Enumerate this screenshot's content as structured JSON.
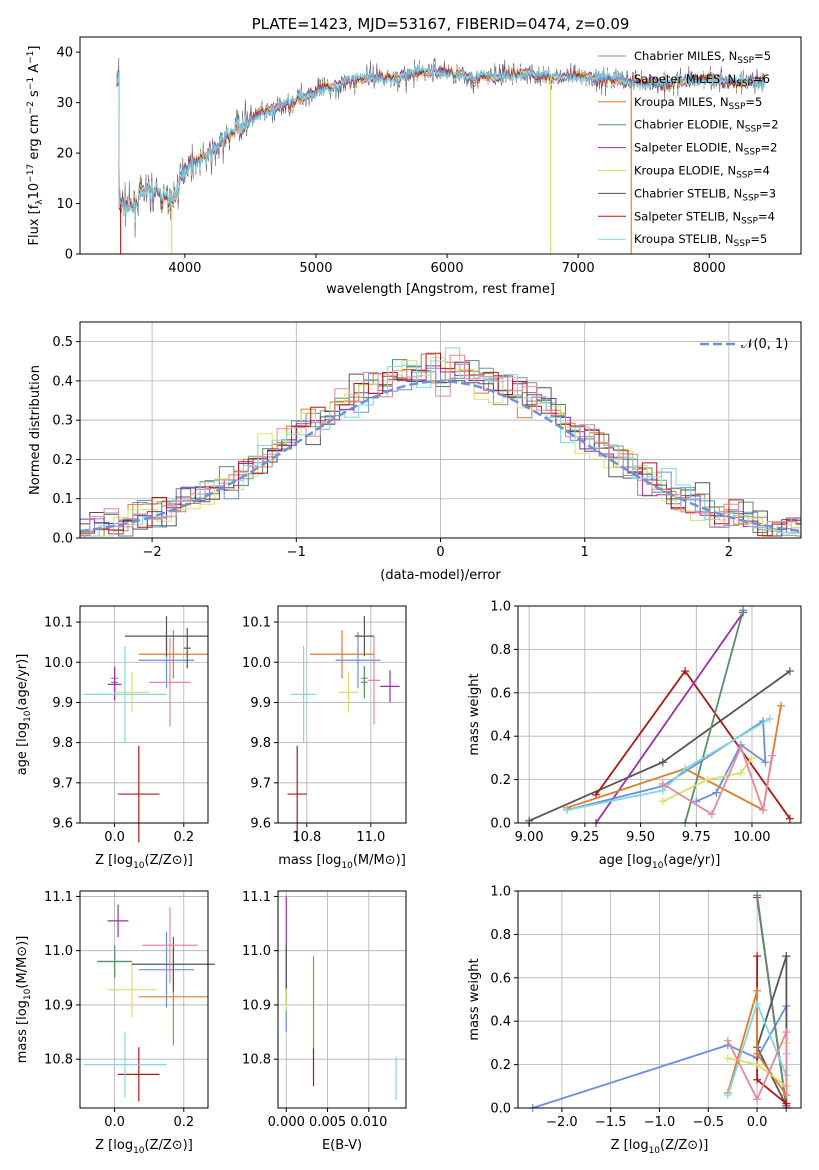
{
  "colors": {
    "chabrier_miles": "#7f9a8a",
    "salpeter_miles": "#6b8fe0",
    "kroupa_miles": "#e07b2a",
    "chabrier_elodie": "#5a8f66",
    "salpeter_elodie": "#9a2fb0",
    "kroupa_elodie": "#d8e06a",
    "chabrier_stelib": "#555555",
    "salpeter_stelib": "#b01818",
    "kroupa_stelib": "#7fd8e0",
    "normal": "#6a93d8",
    "pink": "#e8879b"
  },
  "chart_data": [
    {
      "id": "spectrum",
      "type": "line",
      "title": "PLATE=1423, MJD=53167, FIBERID=0474, z=0.09",
      "xlabel": "wavelength [Angstrom, rest frame]",
      "ylabel": "Flux [f",
      "xlim": [
        3200,
        8700
      ],
      "ylim": [
        0,
        43
      ],
      "xticks": [
        "4000",
        "5000",
        "6000",
        "7000",
        "8000"
      ],
      "yticks": [
        "0",
        "10",
        "20",
        "30",
        "40"
      ],
      "legend": [
        "Chabrier MILES, N",
        "Salpeter MILES, N",
        "Kroupa MILES, N",
        "Chabrier ELODIE, N",
        "Salpeter ELODIE, N",
        "Kroupa ELODIE, N",
        "Chabrier STELIB, N",
        "Salpeter STELIB, N",
        "Kroupa STELIB, N"
      ],
      "legend_nssp": [
        "=5",
        "=6",
        "=5",
        "=2",
        "=2",
        "=4",
        "=3",
        "=4",
        "=5"
      ],
      "legend_position": "upper right",
      "continuum": [
        [
          3500,
          10
        ],
        [
          3600,
          9
        ],
        [
          3700,
          13
        ],
        [
          3800,
          12
        ],
        [
          3900,
          10
        ],
        [
          3950,
          13
        ],
        [
          4000,
          17
        ],
        [
          4200,
          20
        ],
        [
          4400,
          25
        ],
        [
          4600,
          28
        ],
        [
          4800,
          30
        ],
        [
          5000,
          32
        ],
        [
          5200,
          34
        ],
        [
          5400,
          35
        ],
        [
          5600,
          35
        ],
        [
          5800,
          36
        ],
        [
          6000,
          36
        ],
        [
          6200,
          35
        ],
        [
          6400,
          35
        ],
        [
          6600,
          36
        ],
        [
          6800,
          35
        ],
        [
          7000,
          35
        ],
        [
          7200,
          35
        ],
        [
          7400,
          34
        ],
        [
          7600,
          34
        ],
        [
          7800,
          34
        ],
        [
          8000,
          35
        ],
        [
          8200,
          34
        ],
        [
          8400,
          34
        ]
      ],
      "spikes": [
        [
          3510,
          0
        ],
        [
          3900,
          0
        ],
        [
          6790,
          0
        ],
        [
          7405,
          0
        ]
      ]
    },
    {
      "id": "residuals",
      "type": "histogram",
      "xlabel": "(data-model)/error",
      "ylabel": "Normed distribution",
      "xlim": [
        -2.5,
        2.5
      ],
      "ylim": [
        0,
        0.55
      ],
      "xticks": [
        "−2",
        "−1",
        "0",
        "1",
        "2"
      ],
      "yticks": [
        "0.0",
        "0.1",
        "0.2",
        "0.3",
        "0.4",
        "0.5"
      ],
      "legend": [
        "(0, 1)"
      ],
      "legend_position": "upper right",
      "bin_width": 0.1
    },
    {
      "id": "age_vs_Z",
      "type": "errorbar",
      "xlabel": "Z [log",
      "ylabel": "age  [log",
      "xlim": [
        -0.1,
        0.27
      ],
      "ylim": [
        9.6,
        10.14
      ],
      "xticks": [
        "0.0",
        "0.2"
      ],
      "yticks": [
        "9.6",
        "9.7",
        "9.8",
        "9.9",
        "10.0",
        "10.1"
      ],
      "points": [
        {
          "x": 0.0,
          "y": 9.96,
          "xerr": 0.01,
          "yerr": 0.03,
          "c": "chabrier_miles"
        },
        {
          "x": 0.15,
          "y": 10.005,
          "xerr": 0.08,
          "yerr": 0.07,
          "c": "salpeter_miles"
        },
        {
          "x": 0.17,
          "y": 10.02,
          "xerr": 0.1,
          "yerr": 0.06,
          "c": "kroupa_miles"
        },
        {
          "x": 0.0,
          "y": 9.95,
          "xerr": 0.01,
          "yerr": 0.04,
          "c": "chabrier_elodie"
        },
        {
          "x": 0.0,
          "y": 9.945,
          "xerr": 0.02,
          "yerr": 0.04,
          "c": "salpeter_elodie"
        },
        {
          "x": 0.05,
          "y": 9.925,
          "xerr": 0.05,
          "yerr": 0.05,
          "c": "kroupa_elodie"
        },
        {
          "x": 0.15,
          "y": 10.065,
          "xerr": 0.12,
          "yerr": 0.05,
          "c": "chabrier_stelib"
        },
        {
          "x": 0.07,
          "y": 9.672,
          "xerr": 0.06,
          "yerr": 0.12,
          "c": "salpeter_stelib"
        },
        {
          "x": 0.03,
          "y": 9.92,
          "xerr": 0.12,
          "yerr": 0.12,
          "c": "kroupa_stelib"
        },
        {
          "x": 0.16,
          "y": 9.95,
          "xerr": 0.06,
          "yerr": 0.11,
          "c": "pink"
        },
        {
          "x": 0.21,
          "y": 10.035,
          "xerr": 0.01,
          "yerr": 0.05,
          "c": "chabrier_stelib"
        }
      ]
    },
    {
      "id": "age_vs_mass",
      "type": "errorbar",
      "xlabel": "mass [log",
      "ylabel": "",
      "xlim": [
        10.71,
        11.11
      ],
      "ylim": [
        9.6,
        10.14
      ],
      "xticks": [
        "10.8",
        "11.0"
      ],
      "yticks": [
        "9.6",
        "9.7",
        "9.8",
        "9.9",
        "10.0",
        "10.1"
      ],
      "points": [
        {
          "x": 10.98,
          "y": 9.96,
          "xerr": 0.01,
          "yerr": 0.03,
          "c": "chabrier_miles"
        },
        {
          "x": 10.96,
          "y": 10.005,
          "xerr": 0.07,
          "yerr": 0.07,
          "c": "salpeter_miles"
        },
        {
          "x": 10.91,
          "y": 10.02,
          "xerr": 0.1,
          "yerr": 0.06,
          "c": "kroupa_miles"
        },
        {
          "x": 10.98,
          "y": 9.95,
          "xerr": 0.01,
          "yerr": 0.04,
          "c": "chabrier_elodie"
        },
        {
          "x": 11.06,
          "y": 9.94,
          "xerr": 0.03,
          "yerr": 0.04,
          "c": "salpeter_elodie"
        },
        {
          "x": 10.93,
          "y": 9.925,
          "xerr": 0.03,
          "yerr": 0.05,
          "c": "kroupa_elodie"
        },
        {
          "x": 10.98,
          "y": 10.065,
          "xerr": 0.03,
          "yerr": 0.05,
          "c": "chabrier_stelib"
        },
        {
          "x": 10.77,
          "y": 9.672,
          "xerr": 0.03,
          "yerr": 0.12,
          "c": "salpeter_stelib"
        },
        {
          "x": 10.79,
          "y": 9.92,
          "xerr": 0.04,
          "yerr": 0.12,
          "c": "kroupa_stelib"
        },
        {
          "x": 11.01,
          "y": 9.955,
          "xerr": 0.02,
          "yerr": 0.11,
          "c": "pink"
        }
      ]
    },
    {
      "id": "weight_vs_age",
      "type": "line",
      "xlabel": "age  [log",
      "ylabel": "mass weight",
      "xlim": [
        8.95,
        10.22
      ],
      "ylim": [
        0,
        1
      ],
      "xticks": [
        "9.00",
        "9.25",
        "9.50",
        "9.75",
        "10.00"
      ],
      "yticks": [
        "0.0",
        "0.2",
        "0.4",
        "0.6",
        "0.8",
        "1.0"
      ],
      "series": [
        {
          "c": "chabrier_stelib",
          "pts": [
            [
              9.0,
              0.01
            ],
            [
              9.6,
              0.28
            ],
            [
              10.17,
              0.7
            ]
          ]
        },
        {
          "c": "salpeter_stelib",
          "pts": [
            [
              9.3,
              0.13
            ],
            [
              9.7,
              0.7
            ],
            [
              10.17,
              0.02
            ]
          ]
        },
        {
          "c": "salpeter_elodie",
          "pts": [
            [
              9.3,
              0.0
            ],
            [
              9.96,
              0.97
            ]
          ]
        },
        {
          "c": "chabrier_elodie",
          "pts": [
            [
              9.7,
              0.0
            ],
            [
              9.96,
              0.98
            ]
          ]
        },
        {
          "c": "kroupa_miles",
          "pts": [
            [
              9.17,
              0.07
            ],
            [
              9.7,
              0.25
            ],
            [
              10.05,
              0.06
            ],
            [
              10.13,
              0.54
            ]
          ]
        },
        {
          "c": "salpeter_miles",
          "pts": [
            [
              9.17,
              0.06
            ],
            [
              9.6,
              0.17
            ],
            [
              10.05,
              0.47
            ],
            [
              10.06,
              0.28
            ],
            [
              9.95,
              0.36
            ],
            [
              9.84,
              0.14
            ],
            [
              9.75,
              0.1
            ]
          ]
        },
        {
          "c": "kroupa_stelib",
          "pts": [
            [
              9.17,
              0.06
            ],
            [
              9.6,
              0.15
            ],
            [
              9.7,
              0.25
            ],
            [
              10.08,
              0.48
            ]
          ]
        },
        {
          "c": "kroupa_elodie",
          "pts": [
            [
              9.6,
              0.1
            ],
            [
              9.8,
              0.2
            ],
            [
              9.95,
              0.23
            ],
            [
              10.0,
              0.3
            ]
          ]
        },
        {
          "c": "pink",
          "pts": [
            [
              9.6,
              0.18
            ],
            [
              9.82,
              0.04
            ],
            [
              9.95,
              0.35
            ],
            [
              10.05,
              0.06
            ],
            [
              10.09,
              0.31
            ]
          ]
        }
      ]
    },
    {
      "id": "mass_vs_Z",
      "type": "errorbar",
      "xlabel": "Z [log",
      "ylabel": "mass [log",
      "xlim": [
        -0.1,
        0.27
      ],
      "ylim": [
        10.71,
        11.11
      ],
      "xticks": [
        "0.0",
        "0.2"
      ],
      "yticks": [
        "10.8",
        "10.9",
        "11.0",
        "11.1"
      ],
      "points": [
        {
          "x": 0.0,
          "y": 10.98,
          "xerr": 0.05,
          "yerr": 0.03,
          "c": "chabrier_miles"
        },
        {
          "x": 0.15,
          "y": 10.965,
          "xerr": 0.08,
          "yerr": 0.07,
          "c": "salpeter_miles"
        },
        {
          "x": 0.17,
          "y": 10.915,
          "xerr": 0.1,
          "yerr": 0.09,
          "c": "kroupa_miles"
        },
        {
          "x": 0.0,
          "y": 10.98,
          "xerr": 0.05,
          "yerr": 0.03,
          "c": "chabrier_elodie"
        },
        {
          "x": 0.01,
          "y": 11.055,
          "xerr": 0.03,
          "yerr": 0.03,
          "c": "salpeter_elodie"
        },
        {
          "x": 0.05,
          "y": 10.928,
          "xerr": 0.07,
          "yerr": 0.05,
          "c": "kroupa_elodie"
        },
        {
          "x": 0.17,
          "y": 10.975,
          "xerr": 0.12,
          "yerr": 0.05,
          "c": "chabrier_stelib"
        },
        {
          "x": 0.07,
          "y": 10.772,
          "xerr": 0.06,
          "yerr": 0.05,
          "c": "salpeter_stelib"
        },
        {
          "x": 0.03,
          "y": 10.79,
          "xerr": 0.12,
          "yerr": 0.06,
          "c": "kroupa_stelib"
        },
        {
          "x": 0.16,
          "y": 11.01,
          "xerr": 0.08,
          "yerr": 0.07,
          "c": "pink"
        }
      ]
    },
    {
      "id": "mass_vs_ebv",
      "type": "errorbar",
      "xlabel": "E(B-V)",
      "ylabel": "",
      "xlim": [
        -0.001,
        0.0145
      ],
      "ylim": [
        10.71,
        11.11
      ],
      "xticks": [
        "0.000",
        "0.005",
        "0.010"
      ],
      "yticks": [
        "10.8",
        "10.9",
        "11.0",
        "11.1"
      ],
      "points": [
        {
          "x": 0.0,
          "y": 11.0,
          "xerr": 0.0,
          "yerr": 0.1,
          "c": "salpeter_elodie"
        },
        {
          "x": 0.0,
          "y": 10.96,
          "xerr": 0.0,
          "yerr": 0.05,
          "c": "chabrier_stelib"
        },
        {
          "x": 0.0,
          "y": 10.9,
          "xerr": 0.0,
          "yerr": 0.03,
          "c": "kroupa_elodie"
        },
        {
          "x": 0.0,
          "y": 10.87,
          "xerr": 0.0,
          "yerr": 0.02,
          "c": "salpeter_miles"
        },
        {
          "x": 0.0033,
          "y": 10.9,
          "xerr": 0.0,
          "yerr": 0.09,
          "c": "kroupa_miles"
        },
        {
          "x": 0.0033,
          "y": 10.785,
          "xerr": 0.0,
          "yerr": 0.035,
          "c": "salpeter_stelib"
        },
        {
          "x": 0.0133,
          "y": 10.765,
          "xerr": 0.0,
          "yerr": 0.04,
          "c": "kroupa_stelib"
        }
      ]
    },
    {
      "id": "weight_vs_Z",
      "type": "line",
      "xlabel": "Z [log",
      "ylabel": "mass weight",
      "xlim": [
        -2.45,
        0.45
      ],
      "ylim": [
        0,
        1
      ],
      "xticks": [
        "−2.0",
        "−1.5",
        "−1.0",
        "−0.5",
        "0.0"
      ],
      "yticks": [
        "0.0",
        "0.2",
        "0.4",
        "0.6",
        "0.8",
        "1.0"
      ],
      "series": [
        {
          "c": "salpeter_miles",
          "pts": [
            [
              -2.3,
              0.0
            ],
            [
              -0.3,
              0.29
            ],
            [
              0.0,
              0.23
            ],
            [
              0.3,
              0.47
            ],
            [
              0.3,
              0.1
            ]
          ]
        },
        {
          "c": "salpeter_elodie",
          "pts": [
            [
              0.0,
              0.97
            ],
            [
              0.3,
              0.0
            ]
          ]
        },
        {
          "c": "chabrier_elodie",
          "pts": [
            [
              0.0,
              0.98
            ],
            [
              0.3,
              0.0
            ]
          ]
        },
        {
          "c": "chabrier_stelib",
          "pts": [
            [
              0.3,
              0.7
            ],
            [
              0.3,
              0.01
            ],
            [
              0.0,
              0.28
            ],
            [
              0.3,
              0.7
            ]
          ]
        },
        {
          "c": "salpeter_stelib",
          "pts": [
            [
              0.0,
              0.7
            ],
            [
              0.0,
              0.13
            ],
            [
              0.3,
              0.02
            ]
          ]
        },
        {
          "c": "kroupa_miles",
          "pts": [
            [
              -0.3,
              0.07
            ],
            [
              0.0,
              0.54
            ],
            [
              0.0,
              0.25
            ],
            [
              0.3,
              0.06
            ]
          ]
        },
        {
          "c": "kroupa_stelib",
          "pts": [
            [
              -0.3,
              0.06
            ],
            [
              0.0,
              0.48
            ],
            [
              0.3,
              0.15
            ],
            [
              0.3,
              0.25
            ]
          ]
        },
        {
          "c": "kroupa_elodie",
          "pts": [
            [
              -0.3,
              0.23
            ],
            [
              0.0,
              0.2
            ],
            [
              0.3,
              0.1
            ],
            [
              0.3,
              0.3
            ]
          ]
        },
        {
          "c": "pink",
          "pts": [
            [
              -0.3,
              0.31
            ],
            [
              0.0,
              0.04
            ],
            [
              0.3,
              0.35
            ],
            [
              0.3,
              0.06
            ]
          ]
        }
      ]
    }
  ]
}
